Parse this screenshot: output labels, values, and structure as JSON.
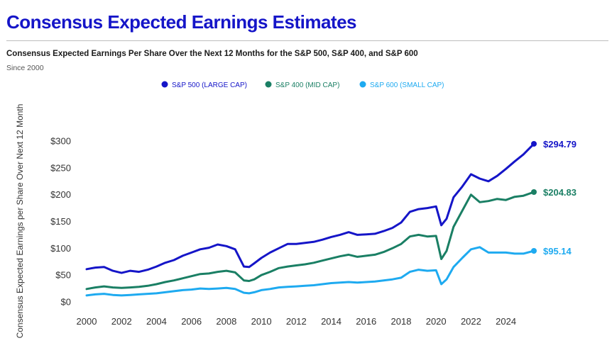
{
  "header": {
    "title": "Consensus Expected Earnings Estimates",
    "subtitle": "Consensus Expected Earnings Per Share Over the Next 12 Months for the S&P 500, S&P 400, and S&P 600",
    "since": "Since 2000"
  },
  "chart_data": {
    "type": "line",
    "title": "Consensus Expected Earnings Per Share Over the Next 12 Months for the S&P 500, S&P 400, and S&P 600",
    "xlabel": "",
    "ylabel": "Consensus Expected Earnings per Share Over Next 12 Month",
    "xlim": [
      2000,
      2025.6
    ],
    "ylim": [
      0,
      300
    ],
    "x_ticks": [
      2000,
      2002,
      2004,
      2006,
      2008,
      2010,
      2012,
      2014,
      2016,
      2018,
      2020,
      2022,
      2024
    ],
    "x_tick_labels": [
      "2000",
      "2002",
      "2004",
      "2006",
      "2008",
      "2010",
      "2012",
      "2014",
      "2016",
      "2018",
      "2020",
      "2022",
      "2024"
    ],
    "y_ticks": [
      0,
      50,
      100,
      150,
      200,
      250,
      300
    ],
    "y_tick_labels": [
      "$0",
      "$50",
      "$100",
      "$150",
      "$200",
      "$250",
      "$300"
    ],
    "grid": false,
    "legend_position": "top-center",
    "x": [
      2000,
      2000.5,
      2001,
      2001.5,
      2002,
      2002.5,
      2003,
      2003.5,
      2004,
      2004.5,
      2005,
      2005.5,
      2006,
      2006.5,
      2007,
      2007.5,
      2008,
      2008.5,
      2009,
      2009.3,
      2009.6,
      2010,
      2010.5,
      2011,
      2011.5,
      2012,
      2012.5,
      2013,
      2013.5,
      2014,
      2014.5,
      2015,
      2015.5,
      2016,
      2016.5,
      2017,
      2017.5,
      2018,
      2018.5,
      2019,
      2019.5,
      2020,
      2020.3,
      2020.6,
      2021,
      2021.5,
      2022,
      2022.5,
      2023,
      2023.5,
      2024,
      2024.5,
      2025,
      2025.6
    ],
    "series": [
      {
        "name": "S&P 500 (LARGE CAP)",
        "color": "#1515c8",
        "end_label": "$294.79",
        "values": [
          61,
          64,
          65,
          58,
          54,
          58,
          56,
          60,
          66,
          73,
          78,
          86,
          92,
          98,
          101,
          107,
          104,
          98,
          66,
          65,
          72,
          82,
          92,
          100,
          108,
          108,
          110,
          112,
          116,
          121,
          125,
          130,
          125,
          126,
          127,
          132,
          138,
          148,
          168,
          173,
          175,
          178,
          143,
          155,
          195,
          215,
          238,
          230,
          225,
          235,
          248,
          262,
          275,
          294.79
        ]
      },
      {
        "name": "S&P 400 (MID CAP)",
        "color": "#1a7f64",
        "end_label": "$204.83",
        "values": [
          24,
          27,
          29,
          27,
          26,
          27,
          28,
          30,
          33,
          37,
          40,
          44,
          48,
          52,
          53,
          56,
          58,
          55,
          40,
          39,
          42,
          50,
          56,
          63,
          66,
          68,
          70,
          73,
          77,
          81,
          85,
          88,
          84,
          86,
          88,
          93,
          100,
          108,
          122,
          125,
          122,
          123,
          80,
          95,
          140,
          170,
          200,
          186,
          188,
          192,
          190,
          196,
          198,
          204.83
        ]
      },
      {
        "name": "S&P 600 (SMALL CAP)",
        "color": "#1eaaf0",
        "end_label": "$95.14",
        "values": [
          12,
          14,
          15,
          13,
          12,
          13,
          14,
          15,
          16,
          18,
          20,
          22,
          23,
          25,
          24,
          25,
          26,
          24,
          17,
          16,
          18,
          22,
          24,
          27,
          28,
          29,
          30,
          31,
          33,
          35,
          36,
          37,
          36,
          37,
          38,
          40,
          42,
          45,
          56,
          60,
          58,
          59,
          33,
          42,
          65,
          82,
          98,
          102,
          92,
          92,
          92,
          90,
          90,
          95.14
        ]
      }
    ]
  }
}
